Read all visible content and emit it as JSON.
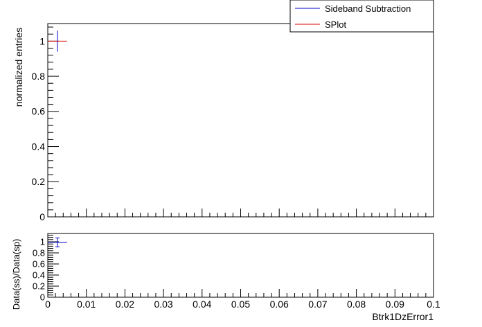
{
  "chart_data": [
    {
      "type": "scatter",
      "panel": "main",
      "xlim": [
        0,
        0.1
      ],
      "ylim": [
        0,
        1.1
      ],
      "ylabel": "normalized entries",
      "yticks": [
        0,
        0.2,
        0.4,
        0.6,
        0.8,
        1
      ],
      "grid": false,
      "legend": {
        "placement": "top-right",
        "entries": [
          "Sideband Subtraction",
          "SPlot"
        ]
      },
      "series": [
        {
          "name": "Sideband Subtraction",
          "color": "#0000cc",
          "points": [
            {
              "x": 0.0025,
              "y": 1.0,
              "xerr": 0,
              "yerr": 0.06
            }
          ]
        },
        {
          "name": "SPlot",
          "color": "#dd0000",
          "points": [
            {
              "x": 0.0025,
              "y": 1.0,
              "xerr": 0.0025,
              "yerr": 0
            }
          ]
        }
      ]
    },
    {
      "type": "scatter",
      "panel": "ratio",
      "xlim": [
        0,
        0.1
      ],
      "ylim": [
        0,
        1.15
      ],
      "xlabel": "Btrk1DzError1",
      "ylabel": "Data(ss)/Data(sp)",
      "xticks": [
        0,
        0.01,
        0.02,
        0.03,
        0.04,
        0.05,
        0.06,
        0.07,
        0.08,
        0.09,
        0.1
      ],
      "yticks": [
        0,
        0.2,
        0.4,
        0.6,
        0.8,
        1
      ],
      "grid": false,
      "series": [
        {
          "color": "#0000cc",
          "points": [
            {
              "x": 0.0025,
              "y": 0.99,
              "xerr": 0.0025,
              "yerr": 0.08
            }
          ]
        }
      ]
    }
  ]
}
